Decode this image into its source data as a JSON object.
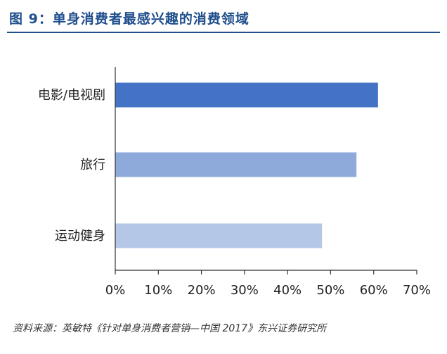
{
  "figure": {
    "title": "图 9：单身消费者最感兴趣的消费领域",
    "source": "资料来源：英敏特《针对单身消费者营销—中国 2017》东兴证券研究所"
  },
  "colors": {
    "title": "#1f4e8c",
    "bar_primary": "#4472c4",
    "bar_secondary": "#8eaadb",
    "bar_tertiary": "#b4c7e7",
    "axis": "#333333"
  },
  "chart_data": {
    "type": "bar",
    "orientation": "horizontal",
    "categories": [
      "电影/电视剧",
      "旅行",
      "运动健身"
    ],
    "values": [
      61,
      56,
      48
    ],
    "value_unit": "%",
    "xlim": [
      0,
      70
    ],
    "x_ticks": [
      "0%",
      "10%",
      "20%",
      "30%",
      "40%",
      "50%",
      "60%",
      "70%"
    ],
    "grid": false,
    "legend": "none",
    "title": "",
    "xlabel": "",
    "ylabel": ""
  }
}
